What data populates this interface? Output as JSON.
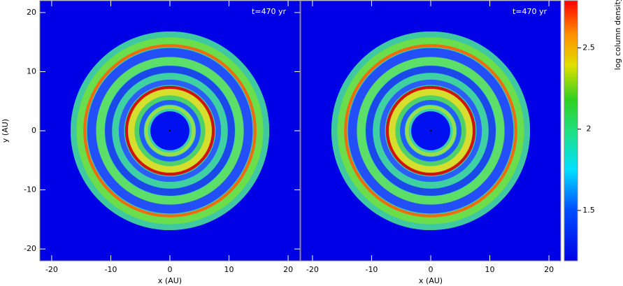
{
  "chart_data": [
    {
      "type": "heatmap",
      "annotation": "t=470 yr",
      "xlabel": "x (AU)",
      "ylabel": "y (AU)",
      "xlim": [
        -22,
        22
      ],
      "xticks": [
        -20,
        -10,
        0,
        10,
        20
      ],
      "ylim": [
        -22,
        22
      ],
      "yticks": [
        -20,
        -10,
        0,
        10,
        20
      ]
    },
    {
      "type": "heatmap",
      "annotation": "t=470 yr",
      "xlabel": "x (AU)",
      "xlim": [
        -22,
        22
      ],
      "xticks": [
        -20,
        -10,
        0,
        10,
        20
      ],
      "ylim": [
        -22,
        22
      ],
      "colorbar": {
        "label": "log column density",
        "lim": [
          1.19,
          2.79
        ],
        "ticks": [
          1.5,
          2,
          2.5
        ]
      }
    }
  ]
}
